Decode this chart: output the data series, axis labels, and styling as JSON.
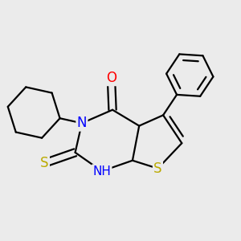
{
  "bg_color": "#ebebeb",
  "bond_color": "#000000",
  "bond_width": 1.6,
  "atom_colors": {
    "N": "#0000ff",
    "O": "#ff0000",
    "S": "#bbaa00",
    "C": "#000000"
  },
  "font_size_atom": 10,
  "fig_size": [
    3.0,
    3.0
  ],
  "dpi": 100
}
